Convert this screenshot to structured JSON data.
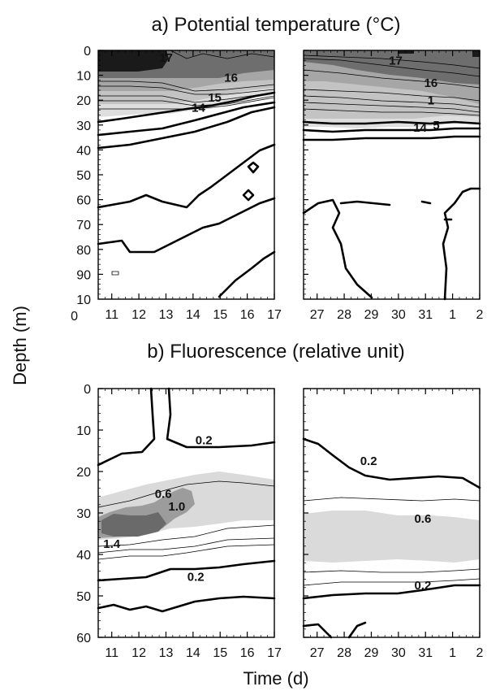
{
  "figure": {
    "ylabel": "Depth (m)",
    "xlabel": "Time (d)"
  },
  "chart_data": [
    {
      "type": "heatmap",
      "title": "a)  Potential temperature (°C)",
      "ylim": [
        0,
        100
      ],
      "y_ticks": [
        "0",
        "10",
        "20",
        "30",
        "40",
        "50",
        "60",
        "70",
        "80",
        "90"
      ],
      "y_tick_last": [
        "10",
        "0"
      ],
      "period1_x_ticks": [
        "11",
        "12",
        "13",
        "14",
        "15",
        "16",
        "17"
      ],
      "period2_x_ticks": [
        "27",
        "28",
        "29",
        "30",
        "31",
        "1",
        "2"
      ],
      "contour_labels": [
        {
          "panel": 1,
          "text": "17",
          "day": 13.0,
          "depth": 4
        },
        {
          "panel": 1,
          "text": "16",
          "day": 15.4,
          "depth": 12
        },
        {
          "panel": 1,
          "text": "15",
          "day": 14.8,
          "depth": 20
        },
        {
          "panel": 1,
          "text": "14",
          "day": 14.2,
          "depth": 24
        },
        {
          "panel": 2,
          "text": "17",
          "day": 29.9,
          "depth": 5
        },
        {
          "panel": 2,
          "text": "16",
          "day": 31.2,
          "depth": 14
        },
        {
          "panel": 2,
          "text": "1",
          "day": 31.2,
          "depth": 21
        },
        {
          "panel": 2,
          "text": "14",
          "day": 30.8,
          "depth": 32
        },
        {
          "panel": 2,
          "text": "5",
          "day": 31.4,
          "depth": 31
        }
      ],
      "bands": [
        {
          "level": "17",
          "color": "#1a1a1a"
        },
        {
          "level": "16",
          "color": "#6e6e6e"
        },
        {
          "level": "15",
          "color": "#a6a6a6"
        },
        {
          "level": "14",
          "color": "#dedede"
        }
      ]
    },
    {
      "type": "heatmap",
      "title": "b) Fluorescence (relative unit)",
      "ylim": [
        0,
        60
      ],
      "y_ticks": [
        "0",
        "10",
        "20",
        "30",
        "40",
        "50",
        "60"
      ],
      "period1_x_ticks": [
        "11",
        "12",
        "13",
        "14",
        "15",
        "16",
        "17"
      ],
      "period2_x_ticks": [
        "27",
        "28",
        "29",
        "30",
        "31",
        "1",
        "2"
      ],
      "contour_labels": [
        {
          "panel": 1,
          "text": "0.2",
          "day": 14.4,
          "depth": 13
        },
        {
          "panel": 1,
          "text": "0.6",
          "day": 12.9,
          "depth": 26
        },
        {
          "panel": 1,
          "text": "1.0",
          "day": 13.4,
          "depth": 29
        },
        {
          "panel": 1,
          "text": "1.4",
          "day": 11.0,
          "depth": 38
        },
        {
          "panel": 1,
          "text": "0.2",
          "day": 14.1,
          "depth": 46
        },
        {
          "panel": 2,
          "text": "0.2",
          "day": 28.9,
          "depth": 18
        },
        {
          "panel": 2,
          "text": "0.6",
          "day": 30.9,
          "depth": 32
        },
        {
          "panel": 2,
          "text": "0.2",
          "day": 30.9,
          "depth": 48
        }
      ],
      "bands": [
        {
          "level": "1.4",
          "color": "#6a6a6a"
        },
        {
          "level": "1.0",
          "color": "#9c9c9c"
        },
        {
          "level": "0.6",
          "color": "#dadada"
        }
      ]
    }
  ]
}
